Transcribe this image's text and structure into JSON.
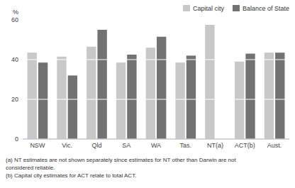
{
  "chart_data": {
    "type": "bar",
    "y_label": "%",
    "categories": [
      "NSW",
      "Vic.",
      "Qld",
      "SA",
      "WA",
      "Tas.",
      "NT(a)",
      "ACT(b)",
      "Aust."
    ],
    "series": [
      {
        "name": "Capital city",
        "color": "#c8c8c8",
        "values": [
          43.5,
          41.5,
          46.5,
          38.5,
          46.0,
          38.5,
          57.5,
          39.0,
          43.5
        ]
      },
      {
        "name": "Balance of State",
        "color": "#727272",
        "values": [
          38.5,
          32.0,
          55.0,
          42.5,
          51.5,
          42.0,
          null,
          43.0,
          43.5
        ]
      }
    ],
    "ylim": [
      0,
      60
    ],
    "yticks": [
      0,
      20,
      40,
      60
    ],
    "grid": true,
    "legend": "upper right",
    "annotations": [
      "(a) NT estimates are not shown separately since estimates for NT other than Darwin are not",
      "considered reliable.",
      "(b) Capital city estimates for ACT relate to total ACT."
    ]
  }
}
